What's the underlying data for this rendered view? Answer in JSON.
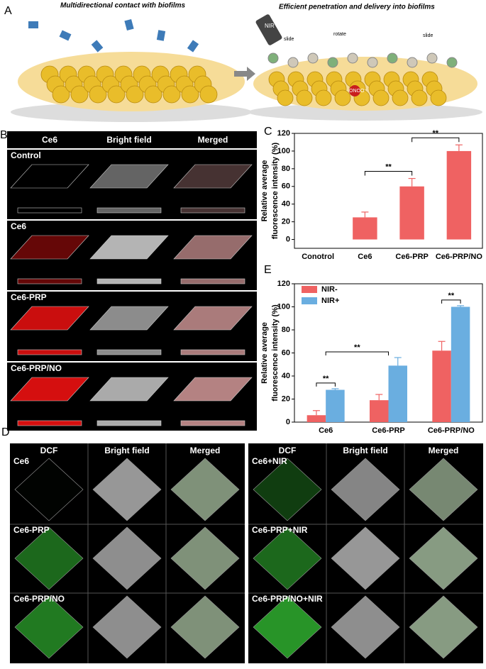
{
  "panel_a": {
    "label": "A",
    "left_caption": "Multidirectional contact with biofilms",
    "right_caption": "Efficient penetration and delivery into biofilms",
    "nir": "NIR",
    "slide": "slide",
    "rotate": "rotate",
    "onoo": "ONOO⁻"
  },
  "panel_b": {
    "label": "B",
    "columns": [
      "Ce6",
      "Bright field",
      "Merged"
    ],
    "rows": [
      "Control",
      "Ce6",
      "Ce6-PRP",
      "Ce6-PRP/NO"
    ]
  },
  "panel_d": {
    "label": "D",
    "columns": [
      "DCF",
      "Bright field",
      "Merged"
    ],
    "left_rows": [
      "Ce6",
      "Ce6-PRP",
      "Ce6-PRP/NO"
    ],
    "right_rows": [
      "Ce6+NIR",
      "Ce6-PRP+NIR",
      "Ce6-PRP/NO+NIR"
    ]
  },
  "chart_data": [
    {
      "type": "bar",
      "panel_label": "C",
      "y_label": [
        "Relative average",
        "fluorescence intensity (%)"
      ],
      "categories": [
        "Conotrol",
        "Ce6",
        "Ce6-PRP",
        "Ce6-PRP/NO"
      ],
      "values": [
        0,
        25,
        60,
        100
      ],
      "errors": [
        0,
        6,
        9,
        7
      ],
      "color": "#ef6262",
      "ylim": [
        -10,
        120
      ],
      "yticks": [
        0,
        20,
        40,
        60,
        80,
        100,
        120
      ],
      "annotations": [
        {
          "text": "**",
          "between": [
            "Ce6",
            "Ce6-PRP"
          ]
        },
        {
          "text": "**",
          "between": [
            "Ce6-PRP",
            "Ce6-PRP/NO"
          ]
        }
      ]
    },
    {
      "type": "grouped_bar",
      "panel_label": "E",
      "y_label": [
        "Relative average",
        "fluorescence intensity (%)"
      ],
      "categories": [
        "Ce6",
        "Ce6-PRP",
        "Ce6-PRP/NO"
      ],
      "series": [
        {
          "name": "NIR-",
          "color": "#ef6262",
          "values": [
            6,
            19,
            62
          ],
          "errors": [
            4,
            5,
            8
          ]
        },
        {
          "name": "NIR+",
          "color": "#6aaee0",
          "values": [
            28,
            49,
            100
          ],
          "errors": [
            1,
            7,
            1
          ]
        }
      ],
      "ylim": [
        0,
        120
      ],
      "yticks": [
        0,
        20,
        40,
        60,
        80,
        100,
        120
      ],
      "legend": "top-left",
      "annotations": [
        {
          "text": "**",
          "category": "Ce6"
        },
        {
          "text": "**",
          "between": [
            "Ce6",
            "Ce6-PRP"
          ]
        },
        {
          "text": "**",
          "category": "Ce6-PRP/NO"
        }
      ]
    }
  ]
}
